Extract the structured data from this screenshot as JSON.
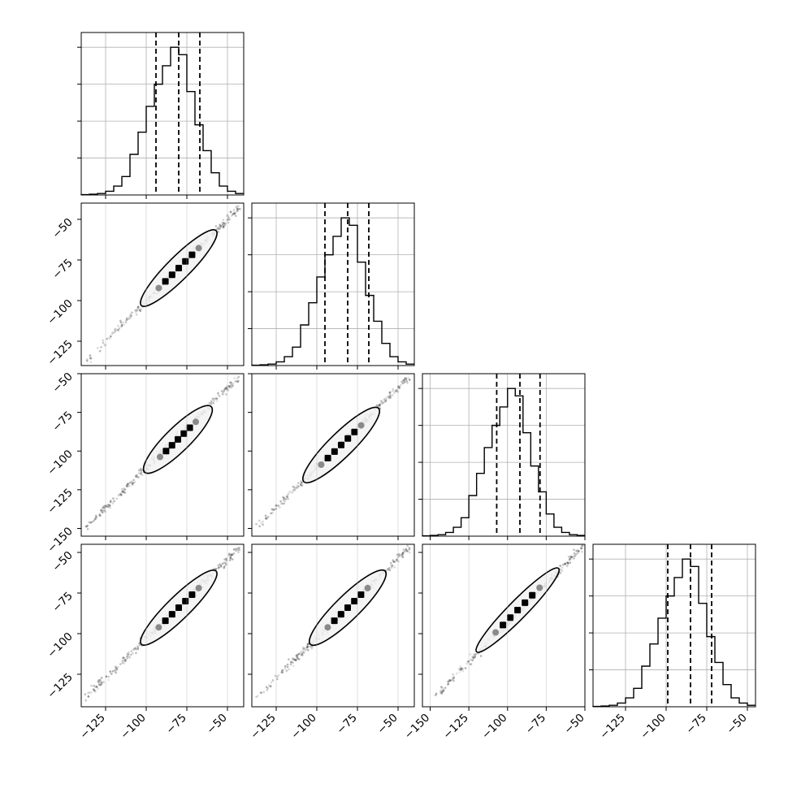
{
  "chart_data": {
    "type": "corner",
    "grid": true,
    "n_params": 4,
    "params": [
      {
        "axis_range": [
          -140,
          -40
        ],
        "x_tick_values": [
          -125,
          -100,
          -75,
          -50
        ],
        "x_tick_labels": [
          "−125",
          "−100",
          "−75",
          "−50"
        ]
      },
      {
        "axis_range": [
          -140,
          -40
        ],
        "x_tick_values": [
          -125,
          -100,
          -75,
          -50
        ],
        "x_tick_labels": [
          "−125",
          "−100",
          "−75",
          "−50"
        ]
      },
      {
        "axis_range": [
          -155,
          -50
        ],
        "x_tick_values": [
          -150,
          -125,
          -100,
          -75,
          -50
        ],
        "x_tick_labels": [
          "−150",
          "−125",
          "−100",
          "−75",
          "−50"
        ]
      },
      {
        "axis_range": [
          -145,
          -45
        ],
        "x_tick_values": [
          -125,
          -100,
          -75,
          -50
        ],
        "x_tick_labels": [
          "−125",
          "−100",
          "−75",
          "−50"
        ]
      }
    ],
    "row_y_ticks": [
      {
        "row": 1,
        "values": [
          -50,
          -75,
          -100,
          -125
        ],
        "labels": [
          "−50",
          "−75",
          "−100",
          "−125"
        ]
      },
      {
        "row": 2,
        "values": [
          -50,
          -75,
          -100,
          -125,
          -150
        ],
        "labels": [
          "−50",
          "−75",
          "−100",
          "−125",
          "−150"
        ]
      },
      {
        "row": 3,
        "values": [
          -50,
          -75,
          -100,
          -125
        ],
        "labels": [
          "−50",
          "−75",
          "−100",
          "−125"
        ]
      }
    ],
    "histograms": [
      {
        "param": 0,
        "bin_start": -140,
        "bin_width": 5,
        "counts": [
          0.5,
          1,
          2,
          5,
          12,
          25,
          55,
          85,
          120,
          150,
          175,
          200,
          190,
          140,
          95,
          60,
          30,
          12,
          5,
          2
        ],
        "quantiles": [
          -94,
          -80,
          -67
        ]
      },
      {
        "param": 1,
        "bin_start": -140,
        "bin_width": 5,
        "counts": [
          0.5,
          1,
          2,
          5,
          12,
          25,
          55,
          85,
          120,
          150,
          175,
          200,
          190,
          140,
          95,
          60,
          30,
          12,
          5,
          2
        ],
        "quantiles": [
          -95,
          -81,
          -68
        ]
      },
      {
        "param": 2,
        "bin_start": -155,
        "bin_width": 5,
        "counts": [
          0.5,
          1,
          2,
          5,
          12,
          25,
          55,
          85,
          120,
          150,
          175,
          200,
          190,
          140,
          95,
          60,
          30,
          12,
          5,
          2,
          1
        ],
        "quantiles": [
          -107,
          -92,
          -79
        ]
      },
      {
        "param": 3,
        "bin_start": -145,
        "bin_width": 5,
        "counts": [
          0.5,
          1,
          2,
          5,
          12,
          25,
          55,
          85,
          120,
          150,
          175,
          200,
          190,
          140,
          95,
          60,
          30,
          12,
          5,
          2
        ],
        "quantiles": [
          -99,
          -85,
          -72
        ]
      }
    ],
    "scatter_trend": [
      {
        "x_param": 0,
        "y_param": 1,
        "x_range": [
          -138,
          -43
        ],
        "y_range": [
          -138,
          -43
        ],
        "center": [
          -81,
          -81
        ],
        "contour_x_range": [
          -103,
          -57
        ],
        "contour_half_width": 1.6
      },
      {
        "x_param": 0,
        "y_param": 2,
        "x_range": [
          -138,
          -43
        ],
        "y_range": [
          -150,
          -52
        ],
        "center": [
          -81,
          -93
        ],
        "contour_x_range": [
          -101,
          -60
        ],
        "contour_half_width": 1.7
      },
      {
        "x_param": 1,
        "y_param": 2,
        "x_range": [
          -138,
          -43
        ],
        "y_range": [
          -150,
          -52
        ],
        "center": [
          -82,
          -93
        ],
        "contour_x_range": [
          -108,
          -62
        ],
        "contour_half_width": 1.7
      },
      {
        "x_param": 0,
        "y_param": 3,
        "x_range": [
          -138,
          -43
        ],
        "y_range": [
          -140,
          -47
        ],
        "center": [
          -81,
          -85
        ],
        "contour_x_range": [
          -103,
          -57
        ],
        "contour_half_width": 1.6
      },
      {
        "x_param": 1,
        "y_param": 3,
        "x_range": [
          -138,
          -43
        ],
        "y_range": [
          -140,
          -47
        ],
        "center": [
          -82,
          -85
        ],
        "contour_x_range": [
          -104,
          -58
        ],
        "contour_half_width": 1.7
      },
      {
        "x_param": 2,
        "y_param": 3,
        "x_range": [
          -148,
          -52
        ],
        "y_range": [
          -140,
          -47
        ],
        "center": [
          -94,
          -86
        ],
        "contour_x_range": [
          -120,
          -67
        ],
        "contour_half_width": 1.3
      }
    ]
  }
}
